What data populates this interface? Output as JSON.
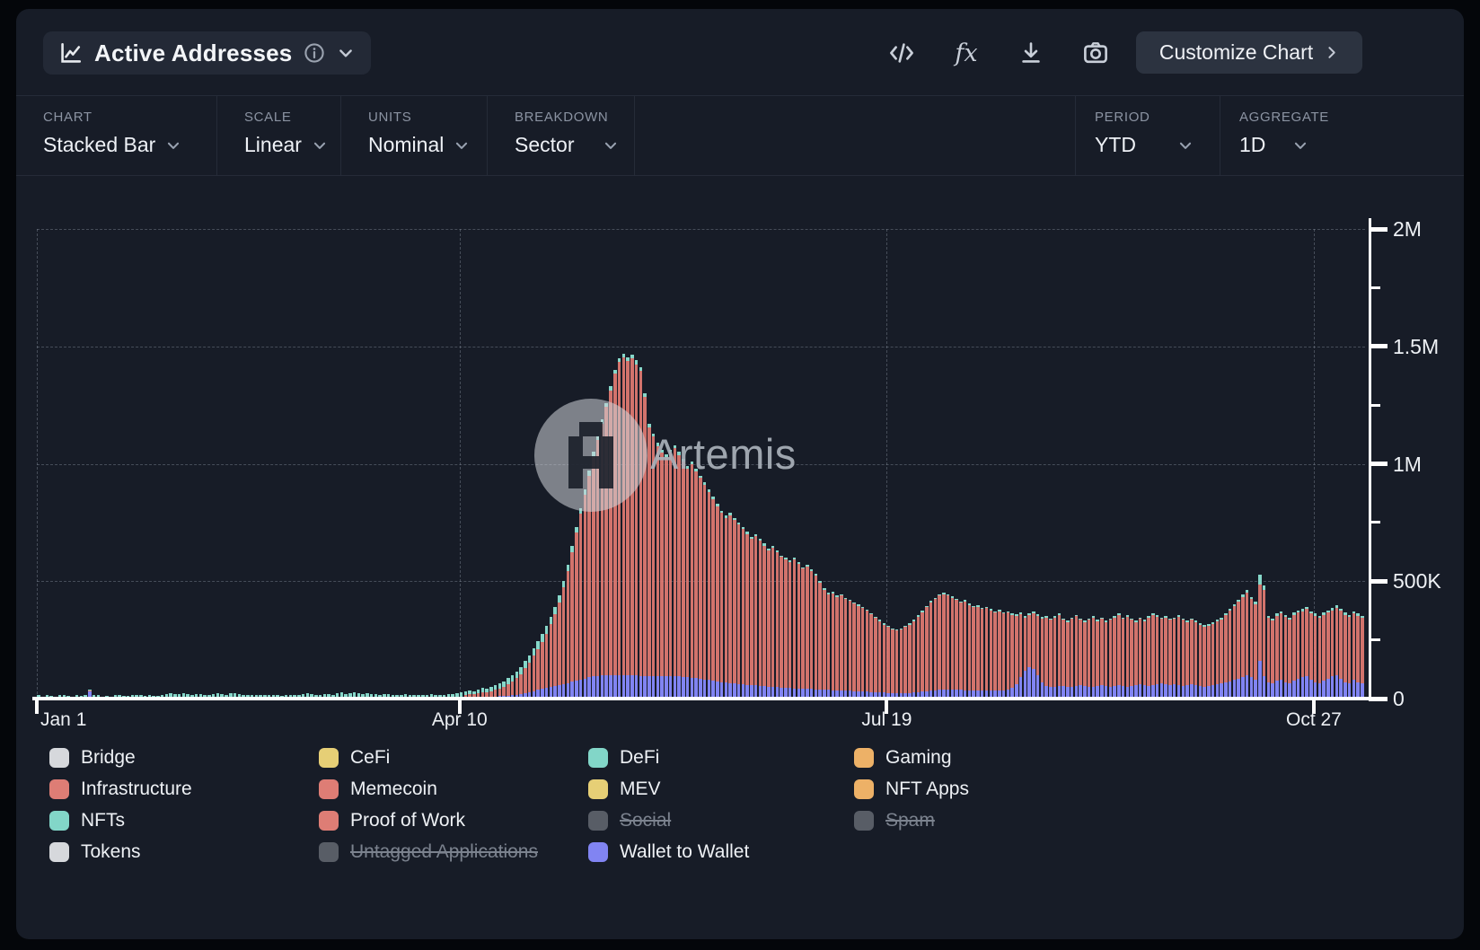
{
  "toolbar": {
    "metric": "Active Addresses",
    "customize_label": "Customize Chart"
  },
  "filters": {
    "chart": {
      "label": "CHART",
      "value": "Stacked Bar"
    },
    "scale": {
      "label": "SCALE",
      "value": "Linear"
    },
    "units": {
      "label": "UNITS",
      "value": "Nominal"
    },
    "breakdown": {
      "label": "BREAKDOWN",
      "value": "Sector"
    },
    "period": {
      "label": "PERIOD",
      "value": "YTD"
    },
    "aggregate": {
      "label": "AGGREGATE",
      "value": "1D"
    }
  },
  "watermark": {
    "text": "Artemis"
  },
  "legend": {
    "items": [
      {
        "label": "Bridge",
        "color": "#d6d8dc",
        "disabled": false
      },
      {
        "label": "CeFi",
        "color": "#e6cf76",
        "disabled": false
      },
      {
        "label": "DeFi",
        "color": "#82d6c8",
        "disabled": false
      },
      {
        "label": "Gaming",
        "color": "#edb167",
        "disabled": false
      },
      {
        "label": "Infrastructure",
        "color": "#de7d75",
        "disabled": false
      },
      {
        "label": "Memecoin",
        "color": "#de7d75",
        "disabled": false
      },
      {
        "label": "MEV",
        "color": "#e6cf76",
        "disabled": false
      },
      {
        "label": "NFT Apps",
        "color": "#edb167",
        "disabled": false
      },
      {
        "label": "NFTs",
        "color": "#82d6c8",
        "disabled": false
      },
      {
        "label": "Proof of Work",
        "color": "#de7d75",
        "disabled": false
      },
      {
        "label": "Social",
        "color": "#585d66",
        "disabled": true
      },
      {
        "label": "Spam",
        "color": "#585d66",
        "disabled": true
      },
      {
        "label": "Tokens",
        "color": "#d6d8dc",
        "disabled": false
      },
      {
        "label": "Untagged Applications",
        "color": "#585d66",
        "disabled": true
      },
      {
        "label": "Wallet to Wallet",
        "color": "#8184f2",
        "disabled": false
      }
    ]
  },
  "chart_data": {
    "type": "bar",
    "subtype": "stacked-daily",
    "title": "Active Addresses",
    "units": "thousands of addresses",
    "period": "YTD, daily bars, day 0 = Jan 1",
    "x_axis": {
      "ticks": [
        {
          "day": 0,
          "label": "Jan 1"
        },
        {
          "day": 99,
          "label": "Apr 10"
        },
        {
          "day": 199,
          "label": "Jul 19"
        },
        {
          "day": 299,
          "label": "Oct 27"
        }
      ]
    },
    "y_axis": {
      "max_k": 2000,
      "minor_step_k": 250,
      "major_ticks": [
        {
          "v": 0,
          "label": "0"
        },
        {
          "v": 500,
          "label": "500K"
        },
        {
          "v": 1000,
          "label": "1M"
        },
        {
          "v": 1500,
          "label": "1.5M"
        },
        {
          "v": 2000,
          "label": "2M"
        }
      ]
    },
    "series_note": "total = whole bar height (K). wallet_to_wallet = purple bottom segment. cap_nfts_defi = teal top segment. salmon middle segment (Infrastructure/Memecoin/Proof of Work group) = total - wallet_to_wallet - cap_nfts_defi.",
    "total": [
      9,
      7,
      10,
      8,
      6,
      9,
      12,
      8,
      7,
      10,
      8,
      12,
      38,
      14,
      9,
      7,
      8,
      6,
      9,
      11,
      7,
      8,
      10,
      12,
      9,
      7,
      10,
      8,
      7,
      12,
      16,
      20,
      14,
      18,
      22,
      16,
      12,
      15,
      19,
      13,
      11,
      16,
      21,
      17,
      13,
      20,
      24,
      16,
      12,
      10,
      9,
      13,
      11,
      8,
      10,
      12,
      9,
      7,
      10,
      13,
      11,
      9,
      16,
      20,
      15,
      12,
      10,
      14,
      18,
      13,
      22,
      26,
      19,
      24,
      28,
      20,
      16,
      23,
      18,
      15,
      13,
      17,
      14,
      11,
      9,
      12,
      15,
      10,
      8,
      11,
      10,
      13,
      16,
      12,
      9,
      11,
      14,
      18,
      21,
      26,
      30,
      34,
      32,
      38,
      45,
      42,
      50,
      58,
      64,
      74,
      88,
      98,
      115,
      135,
      160,
      185,
      215,
      245,
      275,
      310,
      350,
      390,
      440,
      500,
      570,
      650,
      730,
      810,
      890,
      970,
      1050,
      1120,
      1190,
      1260,
      1330,
      1400,
      1450,
      1470,
      1455,
      1465,
      1440,
      1410,
      1300,
      1170,
      1130,
      1090,
      1060,
      1040,
      1060,
      1080,
      1050,
      1020,
      990,
      1010,
      980,
      950,
      920,
      890,
      860,
      830,
      800,
      780,
      790,
      770,
      750,
      730,
      710,
      690,
      700,
      680,
      660,
      640,
      650,
      630,
      610,
      600,
      590,
      600,
      580,
      560,
      570,
      550,
      530,
      500,
      470,
      450,
      455,
      440,
      445,
      430,
      420,
      410,
      400,
      390,
      380,
      365,
      350,
      335,
      320,
      310,
      300,
      296,
      300,
      310,
      320,
      335,
      355,
      375,
      395,
      415,
      430,
      445,
      452,
      445,
      435,
      425,
      415,
      420,
      405,
      395,
      398,
      388,
      392,
      382,
      372,
      378,
      368,
      372,
      362,
      358,
      368,
      352,
      362,
      372,
      358,
      348,
      352,
      342,
      352,
      362,
      342,
      332,
      346,
      356,
      342,
      332,
      342,
      352,
      336,
      346,
      332,
      342,
      352,
      362,
      346,
      356,
      342,
      332,
      346,
      336,
      352,
      362,
      356,
      346,
      352,
      342,
      346,
      356,
      342,
      332,
      342,
      332,
      322,
      312,
      316,
      326,
      336,
      346,
      362,
      382,
      402,
      422,
      442,
      462,
      432,
      412,
      527,
      482,
      352,
      342,
      362,
      372,
      356,
      346,
      366,
      376,
      382,
      392,
      372,
      362,
      352,
      366,
      376,
      386,
      396,
      382,
      366,
      356,
      372,
      362,
      352
    ],
    "wallet_to_wallet": [
      1,
      0,
      1,
      1,
      0,
      1,
      2,
      1,
      0,
      1,
      1,
      2,
      30,
      2,
      1,
      0,
      1,
      0,
      1,
      2,
      1,
      1,
      2,
      2,
      1,
      1,
      2,
      1,
      1,
      2,
      2,
      3,
      2,
      3,
      3,
      2,
      2,
      2,
      3,
      2,
      2,
      2,
      3,
      3,
      2,
      3,
      4,
      2,
      2,
      1,
      1,
      2,
      2,
      1,
      1,
      2,
      1,
      1,
      1,
      2,
      2,
      1,
      2,
      3,
      2,
      2,
      1,
      2,
      3,
      2,
      3,
      4,
      3,
      4,
      4,
      3,
      2,
      3,
      3,
      2,
      2,
      2,
      2,
      1,
      1,
      2,
      2,
      1,
      1,
      2,
      1,
      2,
      2,
      2,
      1,
      2,
      2,
      3,
      3,
      4,
      4,
      5,
      5,
      6,
      7,
      7,
      8,
      9,
      10,
      11,
      13,
      15,
      17,
      20,
      24,
      28,
      32,
      37,
      41,
      47,
      50,
      54,
      58,
      62,
      66,
      71,
      76,
      81,
      86,
      91,
      94,
      96,
      98,
      99,
      100,
      100,
      100,
      100,
      99,
      99,
      98,
      97,
      96,
      95,
      94,
      94,
      95,
      95,
      96,
      97,
      95,
      93,
      91,
      89,
      87,
      85,
      82,
      79,
      76,
      73,
      70,
      68,
      66,
      64,
      63,
      61,
      59,
      57,
      56,
      54,
      52,
      51,
      50,
      48,
      47,
      46,
      45,
      44,
      43,
      42,
      42,
      41,
      40,
      39,
      38,
      37,
      36,
      35,
      34,
      33,
      33,
      32,
      31,
      30,
      29,
      28,
      27,
      26,
      25,
      24,
      23,
      22,
      22,
      23,
      24,
      26,
      28,
      30,
      32,
      34,
      36,
      38,
      40,
      39,
      38,
      38,
      37,
      36,
      36,
      35,
      36,
      35,
      34,
      35,
      34,
      35,
      34,
      40,
      45,
      60,
      90,
      120,
      135,
      128,
      100,
      70,
      55,
      50,
      48,
      52,
      55,
      50,
      48,
      52,
      56,
      52,
      48,
      50,
      54,
      58,
      54,
      50,
      52,
      56,
      52,
      48,
      52,
      56,
      60,
      56,
      52,
      56,
      60,
      64,
      60,
      56,
      60,
      56,
      52,
      56,
      60,
      56,
      52,
      48,
      52,
      56,
      60,
      64,
      68,
      74,
      80,
      86,
      92,
      98,
      90,
      82,
      160,
      95,
      70,
      65,
      75,
      80,
      70,
      65,
      75,
      85,
      90,
      95,
      80,
      70,
      65,
      75,
      85,
      95,
      100,
      85,
      70,
      65,
      80,
      70,
      65
    ],
    "cap_nfts_defi": [
      6,
      5,
      7,
      5,
      4,
      6,
      8,
      5,
      5,
      7,
      5,
      8,
      6,
      9,
      6,
      5,
      5,
      4,
      6,
      8,
      5,
      5,
      7,
      8,
      6,
      5,
      7,
      5,
      5,
      8,
      11,
      14,
      10,
      13,
      15,
      11,
      8,
      10,
      13,
      9,
      8,
      11,
      15,
      12,
      9,
      14,
      17,
      11,
      8,
      7,
      6,
      9,
      8,
      6,
      7,
      8,
      6,
      5,
      7,
      9,
      8,
      6,
      11,
      14,
      10,
      8,
      7,
      10,
      13,
      9,
      15,
      18,
      13,
      17,
      20,
      14,
      11,
      16,
      13,
      10,
      9,
      12,
      10,
      8,
      6,
      8,
      10,
      7,
      6,
      8,
      7,
      9,
      11,
      8,
      6,
      8,
      10,
      13,
      15,
      18,
      14,
      15,
      14,
      16,
      18,
      17,
      19,
      21,
      22,
      24,
      26,
      27,
      28,
      30,
      31,
      32,
      33,
      34,
      34,
      35,
      33,
      31,
      29,
      27,
      26,
      25,
      24,
      23,
      22,
      21,
      20,
      19,
      19,
      18,
      18,
      17,
      17,
      17,
      16,
      16,
      16,
      15,
      15,
      14,
      14,
      14,
      13,
      13,
      13,
      13,
      12,
      12,
      12,
      11,
      11,
      11,
      11,
      10,
      10,
      10,
      10,
      10,
      9,
      9,
      9,
      9,
      9,
      8,
      8,
      8,
      8,
      8,
      8,
      7,
      7,
      7,
      7,
      7,
      7,
      7,
      7,
      7,
      6,
      6,
      6,
      6,
      6,
      6,
      6,
      6,
      5,
      5,
      5,
      5,
      5,
      5,
      5,
      5,
      5,
      5,
      5,
      5,
      5,
      5,
      5,
      6,
      6,
      6,
      6,
      7,
      7,
      7,
      7,
      7,
      7,
      6,
      6,
      6,
      6,
      6,
      6,
      6,
      6,
      6,
      6,
      6,
      6,
      6,
      6,
      7,
      7,
      7,
      7,
      7,
      7,
      6,
      6,
      6,
      6,
      6,
      6,
      6,
      6,
      6,
      6,
      6,
      6,
      6,
      6,
      6,
      6,
      7,
      7,
      7,
      7,
      7,
      7,
      7,
      7,
      7,
      7,
      7,
      7,
      7,
      7,
      7,
      7,
      7,
      7,
      7,
      7,
      7,
      7,
      7,
      7,
      7,
      8,
      8,
      8,
      9,
      9,
      10,
      10,
      10,
      9,
      9,
      40,
      20,
      9,
      8,
      9,
      9,
      9,
      8,
      9,
      9,
      10,
      10,
      9,
      9,
      8,
      9,
      9,
      10,
      10,
      9,
      9,
      8,
      9,
      9,
      8
    ]
  }
}
